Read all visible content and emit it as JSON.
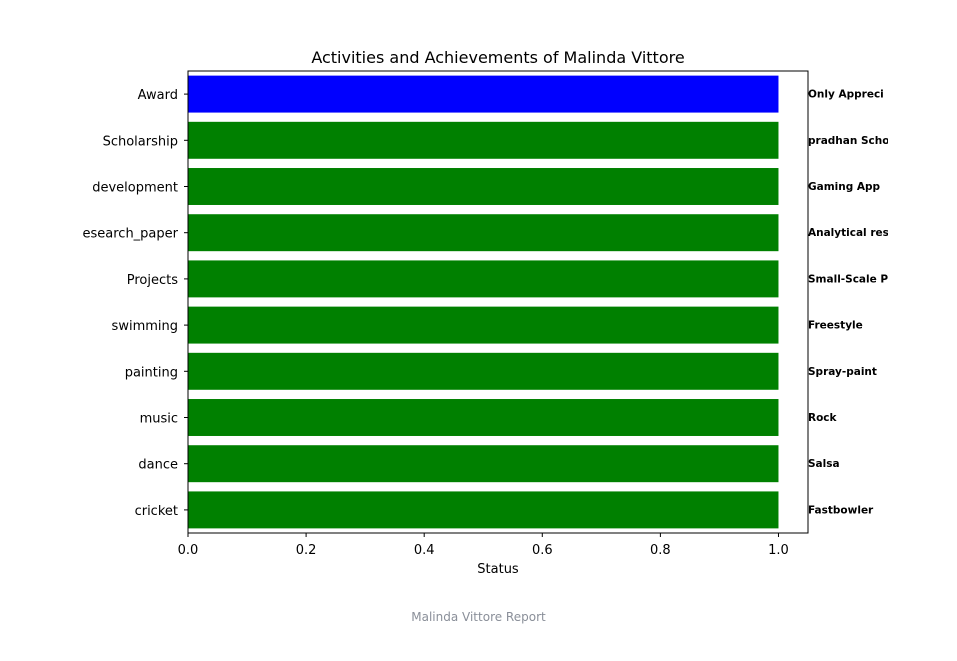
{
  "chart_data": {
    "type": "bar",
    "orientation": "horizontal",
    "title": "Activities and Achievements of Malinda Vittore",
    "xlabel": "Status",
    "ylabel": "",
    "xlim": [
      0,
      1.05
    ],
    "xticks": [
      "0.0",
      "0.2",
      "0.4",
      "0.6",
      "0.8",
      "1.0"
    ],
    "grid": false,
    "categories": [
      "cricket",
      "dance",
      "music",
      "painting",
      "swimming",
      "Projects",
      "esearch_paper",
      "development",
      "Scholarship",
      "Award"
    ],
    "values": [
      1,
      1,
      1,
      1,
      1,
      1,
      1,
      1,
      1,
      1
    ],
    "bar_colors": [
      "#008000",
      "#008000",
      "#008000",
      "#008000",
      "#008000",
      "#008000",
      "#008000",
      "#008000",
      "#008000",
      "#0000ff"
    ],
    "annotations": [
      "Fastbowler",
      "Salsa",
      "Rock",
      "Spray-paint",
      "Freestyle",
      "Small-Scale P",
      "Analytical res",
      "Gaming App",
      "pradhan Scho",
      "Only Appreci"
    ]
  },
  "footer": "Malinda Vittore Report"
}
